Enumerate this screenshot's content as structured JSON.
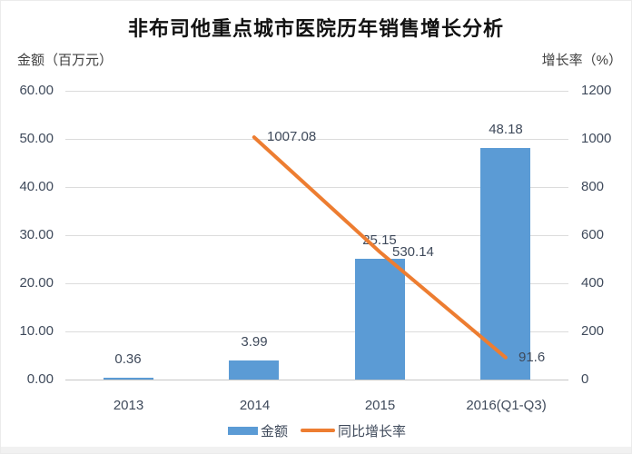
{
  "chart_data": {
    "type": "bar+line combo",
    "title": "非布司他重点城市医院历年销售增长分析",
    "categories": [
      "2013",
      "2014",
      "2015",
      "2016(Q1-Q3)"
    ],
    "left_axis": {
      "title": "金额（百万元）",
      "min": 0,
      "max": 60,
      "step": 10,
      "tick_labels": [
        "60.00",
        "50.00",
        "40.00",
        "30.00",
        "20.00",
        "10.00",
        "0.00"
      ]
    },
    "right_axis": {
      "title": "增长率（%）",
      "min": 0,
      "max": 1200,
      "step": 200,
      "tick_labels": [
        "1200",
        "1000",
        "800",
        "600",
        "400",
        "200",
        "0"
      ]
    },
    "series": [
      {
        "name": "金额",
        "type": "bar",
        "axis": "left",
        "color": "#5B9BD5",
        "values": [
          0.36,
          3.99,
          25.15,
          48.18
        ],
        "labels": [
          "0.36",
          "3.99",
          "25.15",
          "48.18"
        ]
      },
      {
        "name": "同比增长率",
        "type": "line",
        "axis": "right",
        "color": "#ED7D31",
        "values": [
          null,
          1007.08,
          530.14,
          91.6
        ],
        "labels": [
          null,
          "1007.08",
          "530.14",
          "91.6"
        ]
      }
    ],
    "legend": [
      "金额",
      "同比增长率"
    ],
    "grid": true,
    "legend_position": "bottom"
  },
  "colors": {
    "bar": "#5B9BD5",
    "line": "#ED7D31",
    "gridline": "#dcdcdc",
    "axis_text": "#3f4a5b",
    "title_text": "#111111"
  }
}
